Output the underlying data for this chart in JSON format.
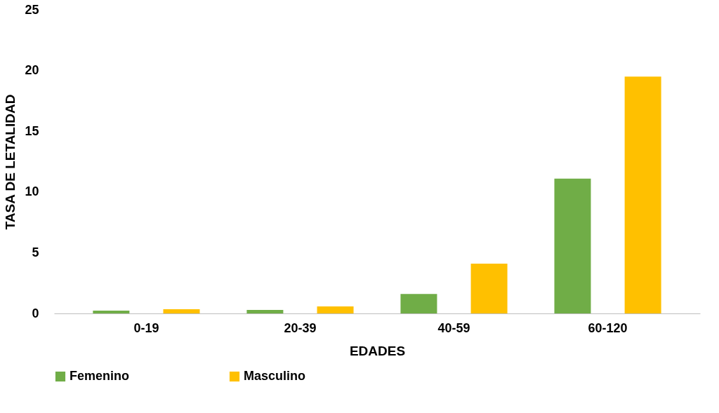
{
  "chart_data": {
    "type": "bar",
    "xlabel": "EDADES",
    "ylabel": "TASA DE LETALIDAD",
    "categories": [
      "0-19",
      "20-39",
      "40-59",
      "60-120"
    ],
    "series": [
      {
        "name": "Femenino",
        "color": "#70ad47",
        "values": [
          0.23,
          0.29,
          1.6,
          11.1
        ]
      },
      {
        "name": "Masculino",
        "color": "#ffc000",
        "values": [
          0.35,
          0.58,
          4.1,
          19.5
        ]
      }
    ],
    "ylim": [
      0,
      25
    ],
    "yticks": [
      0,
      5,
      10,
      15,
      20,
      25
    ],
    "grid": false,
    "legend": "bottom"
  }
}
